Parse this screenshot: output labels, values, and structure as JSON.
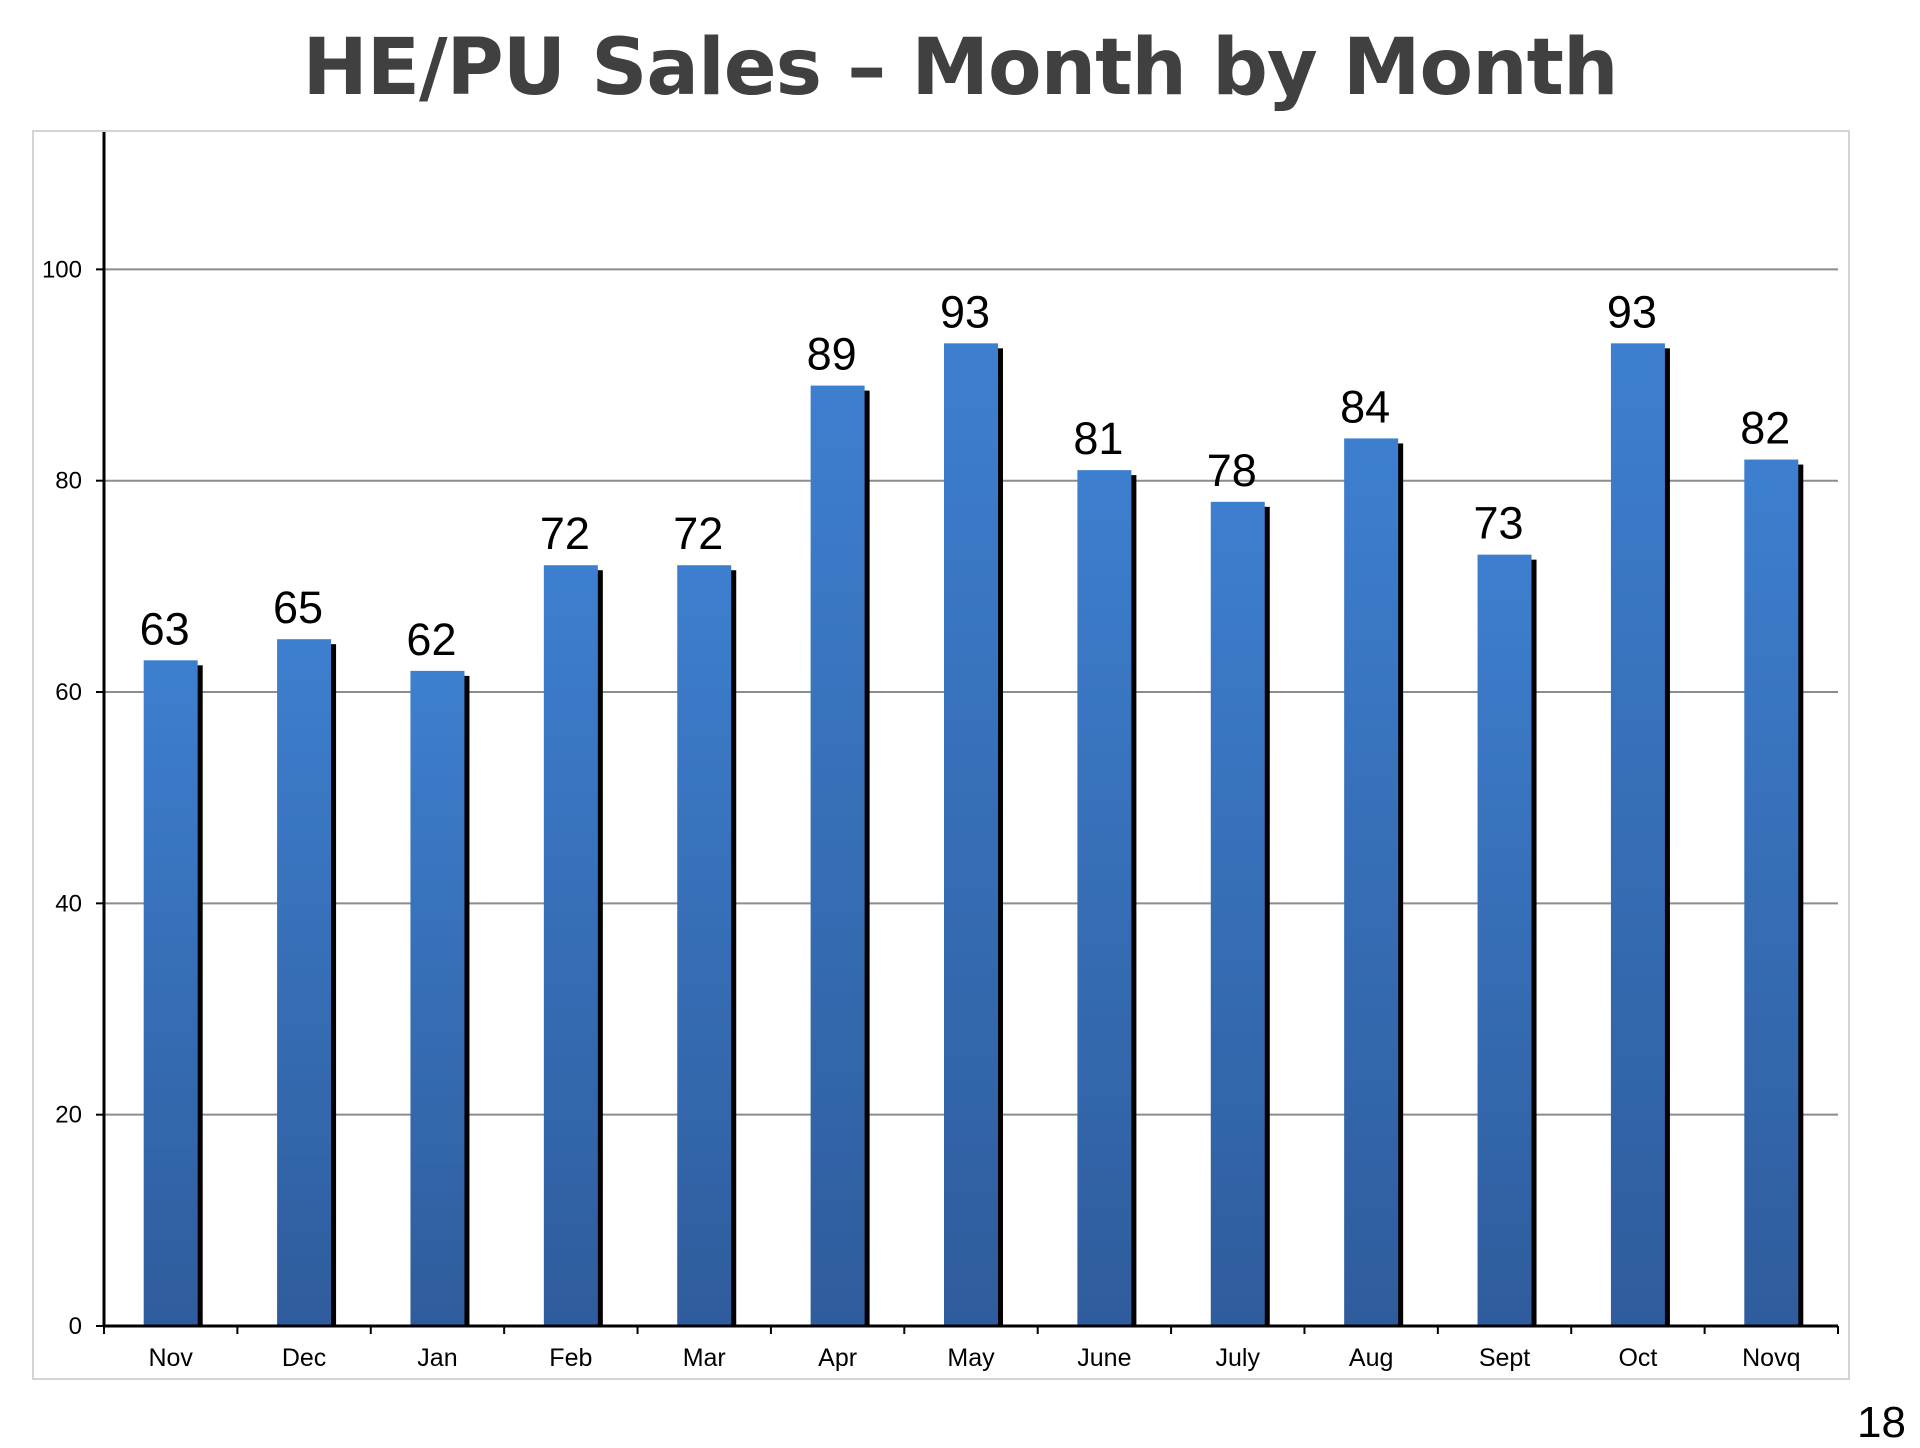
{
  "slide": {
    "title": "HE/PU Sales – Month by Month",
    "page_number": "18"
  },
  "colors": {
    "bar_top": "#3d7fcf",
    "bar_bottom": "#2f5c9c",
    "bar_shadow": "#000000",
    "gridline": "#8c8c8c",
    "axis": "#000000",
    "frame_border": "#d4d4d4",
    "title": "#404040"
  },
  "chart_data": {
    "type": "bar",
    "title": "",
    "xlabel": "",
    "ylabel": "",
    "categories": [
      "Nov",
      "Dec",
      "Jan",
      "Feb",
      "Mar",
      "Apr",
      "May",
      "June",
      "July",
      "Aug",
      "Sept",
      "Oct",
      "Novq"
    ],
    "values": [
      63,
      65,
      62,
      72,
      72,
      89,
      93,
      81,
      78,
      84,
      73,
      93,
      82
    ],
    "data_labels": [
      "63",
      "65",
      "62",
      "72",
      "72",
      "89",
      "93",
      "81",
      "78",
      "84",
      "73",
      "93",
      "82"
    ],
    "ylim": [
      0,
      113
    ],
    "yticks": [
      0,
      20,
      40,
      60,
      80,
      100
    ],
    "ytick_labels": [
      "0",
      "20",
      "40",
      "60",
      "80",
      "100"
    ],
    "grid": true,
    "legend": "none"
  }
}
